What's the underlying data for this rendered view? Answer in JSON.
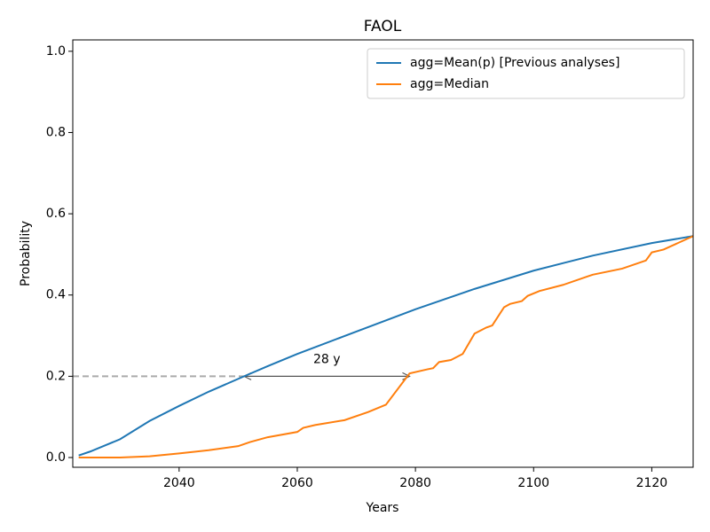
{
  "chart_data": {
    "type": "line",
    "title": "FAOL",
    "xlabel": "Years",
    "ylabel": "Probability",
    "xlim": [
      2022,
      2127
    ],
    "ylim": [
      -0.024,
      1.028
    ],
    "xticks": [
      2040,
      2060,
      2080,
      2100,
      2120
    ],
    "yticks": [
      {
        "value": 0,
        "label": "0.0"
      },
      0.2,
      0.4,
      0.6,
      0.8,
      {
        "value": 1,
        "label": "1.0"
      }
    ],
    "legend": "upper right",
    "series": [
      {
        "name": "agg=Mean(p) [Previous analyses]",
        "color": "#1f77b4",
        "x": [
          2023,
          2025,
          2030,
          2035,
          2040,
          2045,
          2051,
          2055,
          2060,
          2070,
          2080,
          2090,
          2100,
          2110,
          2120,
          2127
        ],
        "values": [
          0.005,
          0.015,
          0.045,
          0.09,
          0.127,
          0.162,
          0.2,
          0.225,
          0.255,
          0.31,
          0.365,
          0.415,
          0.46,
          0.497,
          0.528,
          0.545
        ]
      },
      {
        "name": "agg=Median",
        "color": "#ff7f0e",
        "x": [
          2023,
          2030,
          2035,
          2040,
          2045,
          2050,
          2052,
          2055,
          2060,
          2061,
          2063,
          2068,
          2072,
          2075,
          2079,
          2082,
          2083,
          2084,
          2086,
          2088,
          2090,
          2092,
          2093,
          2095,
          2096,
          2098,
          2099,
          2101,
          2105,
          2109,
          2110,
          2115,
          2119,
          2120,
          2122,
          2127
        ],
        "values": [
          0,
          0,
          0.003,
          0.01,
          0.018,
          0.028,
          0.038,
          0.05,
          0.063,
          0.073,
          0.08,
          0.092,
          0.112,
          0.13,
          0.207,
          0.217,
          0.22,
          0.235,
          0.24,
          0.255,
          0.305,
          0.32,
          0.325,
          0.37,
          0.378,
          0.385,
          0.398,
          0.41,
          0.425,
          0.445,
          0.45,
          0.465,
          0.485,
          0.505,
          0.512,
          0.545
        ]
      }
    ],
    "annotation": {
      "text": "28 y",
      "y": 0.2,
      "x_start": 2051,
      "x_end": 2079
    }
  }
}
